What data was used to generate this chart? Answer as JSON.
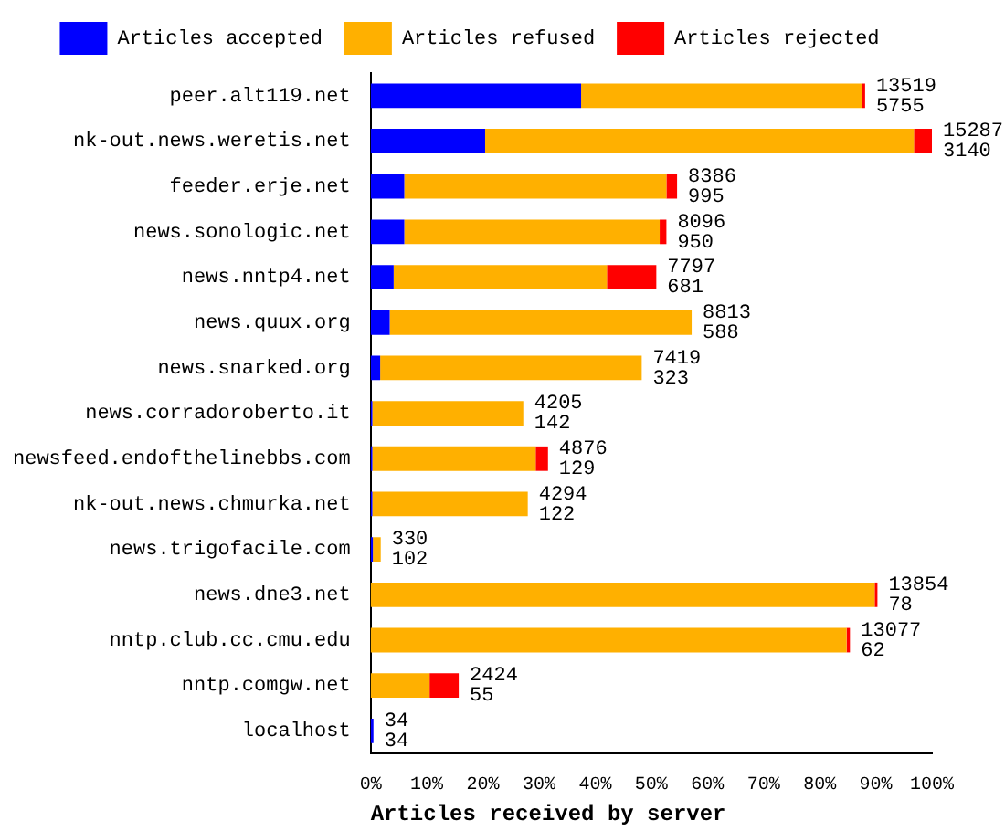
{
  "chart_data": {
    "type": "bar",
    "orientation": "horizontal",
    "stacked": true,
    "xlabel": "Articles received by server",
    "categories": [
      "peer.alt119.net",
      "nk-out.news.weretis.net",
      "feeder.erje.net",
      "news.sonologic.net",
      "news.nntp4.net",
      "news.quux.org",
      "news.snarked.org",
      "news.corradoroberto.it",
      "newsfeed.endofthelinebbs.com",
      "nk-out.news.chmurka.net",
      "news.trigofacile.com",
      "news.dne3.net",
      "nntp.club.cc.cmu.edu",
      "nntp.comgw.net",
      "localhost"
    ],
    "series": [
      {
        "name": "Articles accepted",
        "color": "#0000ff",
        "values": [
          37.5,
          20.4,
          6.0,
          6.0,
          4.1,
          3.4,
          1.7,
          0.3,
          0.3,
          0.3,
          0.4,
          0,
          0,
          0,
          0.5
        ]
      },
      {
        "name": "Articles refused",
        "color": "#ffb000",
        "values": [
          50,
          76.4,
          46.7,
          45.5,
          38,
          53.8,
          46.6,
          26.9,
          29.1,
          27.7,
          1.4,
          89.8,
          84.8,
          10.5,
          0
        ]
      },
      {
        "name": "Articles rejected",
        "color": "#ff0000",
        "values": [
          0.6,
          3.2,
          1.9,
          1.2,
          8.8,
          0,
          0,
          0,
          2.2,
          0,
          0,
          0.5,
          0.6,
          5.2,
          0
        ]
      }
    ],
    "xlim": [
      0,
      100
    ],
    "xticks": [
      {
        "value": 0,
        "label": "0%"
      },
      {
        "value": 10,
        "label": "10%"
      },
      {
        "value": 20,
        "label": "20%"
      },
      {
        "value": 30,
        "label": "30%"
      },
      {
        "value": 40,
        "label": "40%"
      },
      {
        "value": 50,
        "label": "50%"
      },
      {
        "value": 60,
        "label": "60%"
      },
      {
        "value": 70,
        "label": "70%"
      },
      {
        "value": 80,
        "label": "80%"
      },
      {
        "value": 90,
        "label": "90%"
      },
      {
        "value": 100,
        "label": "100%"
      }
    ],
    "annotations": [
      {
        "text": "13519\n5755",
        "x": 88.1,
        "y": "peer.alt119.net"
      },
      {
        "text": "15287\n3140",
        "x": 100,
        "y": "nk-out.news.weretis.net"
      },
      {
        "text": "8386\n995",
        "x": 54.6,
        "y": "feeder.erje.net"
      },
      {
        "text": "8096\n950",
        "x": 52.7,
        "y": "news.sonologic.net"
      },
      {
        "text": "7797\n681",
        "x": 50.9,
        "y": "news.nntp4.net"
      },
      {
        "text": "8813\n588",
        "x": 57.2,
        "y": "news.quux.org"
      },
      {
        "text": "7419\n323",
        "x": 48.3,
        "y": "news.snarked.org"
      },
      {
        "text": "4205\n142",
        "x": 27.2,
        "y": "news.corradoroberto.it"
      },
      {
        "text": "4876\n129",
        "x": 31.6,
        "y": "newsfeed.endofthelinebbs.com"
      },
      {
        "text": "4294\n122",
        "x": 28,
        "y": "nk-out.news.chmurka.net"
      },
      {
        "text": "330\n102",
        "x": 1.8,
        "y": "news.trigofacile.com"
      },
      {
        "text": "13854\n78",
        "x": 90.3,
        "y": "news.dne3.net"
      },
      {
        "text": "13077\n62",
        "x": 85.4,
        "y": "nntp.club.cc.cmu.edu"
      },
      {
        "text": "2424\n55",
        "x": 15.7,
        "y": "nntp.comgw.net"
      },
      {
        "text": "34\n34",
        "x": 0.5,
        "y": "localhost"
      }
    ],
    "grid": false,
    "legend": "top"
  }
}
